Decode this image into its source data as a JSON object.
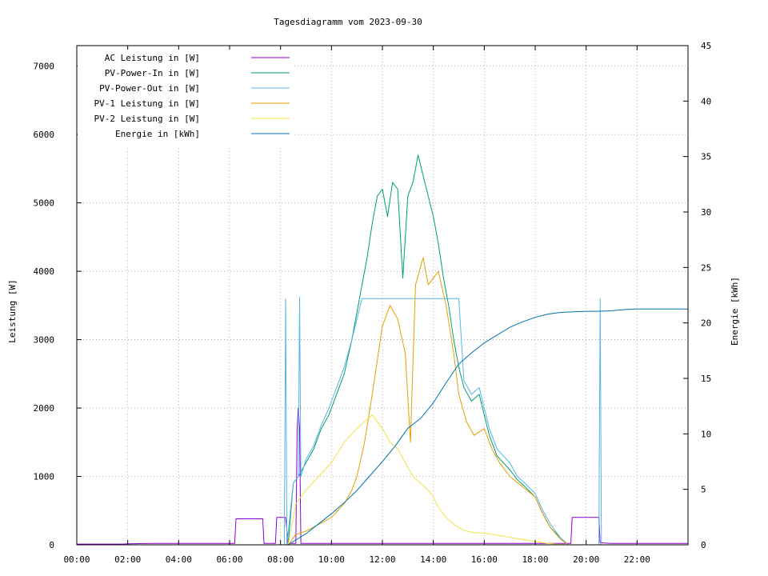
{
  "chart_data": {
    "type": "line",
    "title": "Tagesdiagramm vom 2023-09-30",
    "ylabel": "Leistung [W]",
    "y2label": "Energie [kWh]",
    "xlim": [
      0,
      24
    ],
    "ylim": [
      0,
      7300
    ],
    "y2lim": [
      0,
      45
    ],
    "grid": true,
    "legend_position": "top-left",
    "x_ticks": [
      {
        "value": 0,
        "label": "00:00"
      },
      {
        "value": 2,
        "label": "02:00"
      },
      {
        "value": 4,
        "label": "04:00"
      },
      {
        "value": 6,
        "label": "06:00"
      },
      {
        "value": 8,
        "label": "08:00"
      },
      {
        "value": 10,
        "label": "10:00"
      },
      {
        "value": 12,
        "label": "12:00"
      },
      {
        "value": 14,
        "label": "14:00"
      },
      {
        "value": 16,
        "label": "16:00"
      },
      {
        "value": 18,
        "label": "18:00"
      },
      {
        "value": 20,
        "label": "20:00"
      },
      {
        "value": 22,
        "label": "22:00"
      }
    ],
    "y_ticks": [
      {
        "value": 0,
        "label": "0"
      },
      {
        "value": 1000,
        "label": "1000"
      },
      {
        "value": 2000,
        "label": "2000"
      },
      {
        "value": 3000,
        "label": "3000"
      },
      {
        "value": 4000,
        "label": "4000"
      },
      {
        "value": 5000,
        "label": "5000"
      },
      {
        "value": 6000,
        "label": "6000"
      },
      {
        "value": 7000,
        "label": "7000"
      }
    ],
    "y2_ticks": [
      {
        "value": 0,
        "label": "0"
      },
      {
        "value": 5,
        "label": "5"
      },
      {
        "value": 10,
        "label": "10"
      },
      {
        "value": 15,
        "label": "15"
      },
      {
        "value": 20,
        "label": "20"
      },
      {
        "value": 25,
        "label": "25"
      },
      {
        "value": 30,
        "label": "30"
      },
      {
        "value": 35,
        "label": "35"
      },
      {
        "value": 40,
        "label": "40"
      },
      {
        "value": 45,
        "label": "45"
      }
    ],
    "series": [
      {
        "name": "AC Leistung in [W]",
        "color": "#9400d3",
        "axis": "left",
        "x": [
          0,
          1.8,
          2.0,
          3.0,
          5.0,
          6.0,
          6.2,
          6.25,
          7.3,
          7.35,
          7.8,
          7.85,
          8.2,
          8.3,
          8.6,
          8.65,
          8.7,
          8.75,
          8.8,
          8.85,
          19.4,
          19.45,
          20.5,
          20.55,
          21.0,
          22.0,
          24.0
        ],
        "y": [
          10,
          10,
          15,
          20,
          20,
          20,
          20,
          380,
          380,
          20,
          20,
          400,
          400,
          20,
          20,
          1700,
          2000,
          1700,
          20,
          20,
          20,
          400,
          400,
          30,
          20,
          20,
          20
        ]
      },
      {
        "name": "PV-Power-In in [W]",
        "color": "#009e73",
        "axis": "left",
        "x": [
          0,
          8.3,
          8.5,
          8.7,
          9.0,
          9.3,
          9.6,
          9.9,
          10.2,
          10.5,
          10.8,
          11.0,
          11.2,
          11.4,
          11.6,
          11.8,
          12.0,
          12.2,
          12.4,
          12.6,
          12.8,
          13.0,
          13.2,
          13.4,
          13.6,
          13.8,
          14.0,
          14.2,
          14.4,
          14.6,
          14.8,
          15.0,
          15.2,
          15.5,
          15.8,
          16.0,
          16.2,
          16.5,
          17.0,
          17.3,
          17.6,
          18.0,
          18.3,
          18.6,
          19.0,
          19.3,
          19.6,
          20.0,
          24.0
        ],
        "y": [
          0,
          0,
          900,
          1000,
          1200,
          1400,
          1700,
          1900,
          2200,
          2500,
          3000,
          3400,
          3800,
          4200,
          4700,
          5100,
          5200,
          4800,
          5300,
          5200,
          3900,
          5100,
          5300,
          5700,
          5400,
          5100,
          4800,
          4400,
          3900,
          3500,
          3000,
          2600,
          2300,
          2100,
          2200,
          1900,
          1600,
          1300,
          1100,
          950,
          850,
          700,
          450,
          250,
          100,
          0,
          0,
          0,
          0
        ]
      },
      {
        "name": "PV-Power-Out in [W]",
        "color": "#56b4e9",
        "axis": "left",
        "x": [
          0,
          8.15,
          8.2,
          8.25,
          8.5,
          8.7,
          8.75,
          8.8,
          9.0,
          9.3,
          9.6,
          9.9,
          10.2,
          10.5,
          10.8,
          11.0,
          11.2,
          11.4,
          11.6,
          11.8,
          12.0,
          13.0,
          13.5,
          14.0,
          14.5,
          15.0,
          15.2,
          15.5,
          15.8,
          16.0,
          16.2,
          16.5,
          17.0,
          17.3,
          17.6,
          18.0,
          18.3,
          18.6,
          19.0,
          19.3,
          20.5,
          20.55,
          20.6,
          24.0
        ],
        "y": [
          0,
          0,
          3600,
          0,
          900,
          1000,
          3620,
          1000,
          1250,
          1450,
          1750,
          2000,
          2300,
          2600,
          3000,
          3300,
          3600,
          3600,
          3600,
          3600,
          3600,
          3600,
          3600,
          3600,
          3600,
          3600,
          2400,
          2200,
          2300,
          2000,
          1700,
          1400,
          1200,
          1000,
          900,
          750,
          500,
          300,
          100,
          0,
          0,
          3600,
          0,
          0
        ]
      },
      {
        "name": "PV-1 Leistung in [W]",
        "color": "#e69f00",
        "axis": "left",
        "x": [
          0,
          8.3,
          8.6,
          9.0,
          9.5,
          10.0,
          10.5,
          10.8,
          11.0,
          11.3,
          11.6,
          12.0,
          12.3,
          12.6,
          12.9,
          13.1,
          13.3,
          13.6,
          13.8,
          14.0,
          14.2,
          14.5,
          14.8,
          15.0,
          15.3,
          15.6,
          16.0,
          16.3,
          16.6,
          17.0,
          17.5,
          18.0,
          18.3,
          18.6,
          19.0,
          19.3,
          24.0
        ],
        "y": [
          0,
          0,
          150,
          200,
          300,
          400,
          600,
          800,
          1000,
          1500,
          2200,
          3200,
          3500,
          3300,
          2800,
          1500,
          3800,
          4200,
          3800,
          3900,
          4000,
          3500,
          2800,
          2200,
          1800,
          1600,
          1700,
          1400,
          1200,
          1000,
          850,
          700,
          450,
          250,
          80,
          0,
          0
        ]
      },
      {
        "name": "PV-2 Leistung in [W]",
        "color": "#f0e442",
        "axis": "left",
        "x": [
          0,
          8.3,
          8.6,
          9.0,
          9.5,
          10.0,
          10.5,
          11.0,
          11.3,
          11.6,
          12.0,
          12.3,
          12.6,
          12.9,
          13.2,
          13.5,
          13.8,
          14.0,
          14.2,
          14.5,
          14.8,
          15.0,
          15.3,
          15.6,
          16.0,
          16.5,
          17.0,
          17.5,
          18.0,
          18.5,
          19.0,
          19.3,
          24.0
        ],
        "y": [
          0,
          0,
          600,
          800,
          1000,
          1200,
          1500,
          1700,
          1800,
          1900,
          1700,
          1500,
          1400,
          1200,
          1000,
          900,
          800,
          700,
          550,
          400,
          300,
          250,
          200,
          180,
          170,
          140,
          110,
          80,
          50,
          20,
          5,
          0,
          0
        ]
      },
      {
        "name": "Energie in [kWh]",
        "color": "#0072b2",
        "axis": "right",
        "x": [
          0,
          8.3,
          8.5,
          9.0,
          9.5,
          10.0,
          10.5,
          11.0,
          11.5,
          12.0,
          12.5,
          13.0,
          13.5,
          14.0,
          14.5,
          15.0,
          15.5,
          16.0,
          16.5,
          17.0,
          17.5,
          18.0,
          18.5,
          19.0,
          19.5,
          20.0,
          20.5,
          21.0,
          21.5,
          22.0,
          22.5,
          23.0,
          24.0
        ],
        "y": [
          0,
          0,
          0.3,
          1.0,
          1.9,
          2.8,
          3.8,
          4.9,
          6.2,
          7.5,
          8.9,
          10.5,
          11.4,
          12.8,
          14.6,
          16.3,
          17.3,
          18.2,
          18.9,
          19.6,
          20.1,
          20.5,
          20.8,
          20.95,
          21.0,
          21.05,
          21.05,
          21.1,
          21.2,
          21.25,
          21.25,
          21.25,
          21.25
        ]
      }
    ]
  }
}
